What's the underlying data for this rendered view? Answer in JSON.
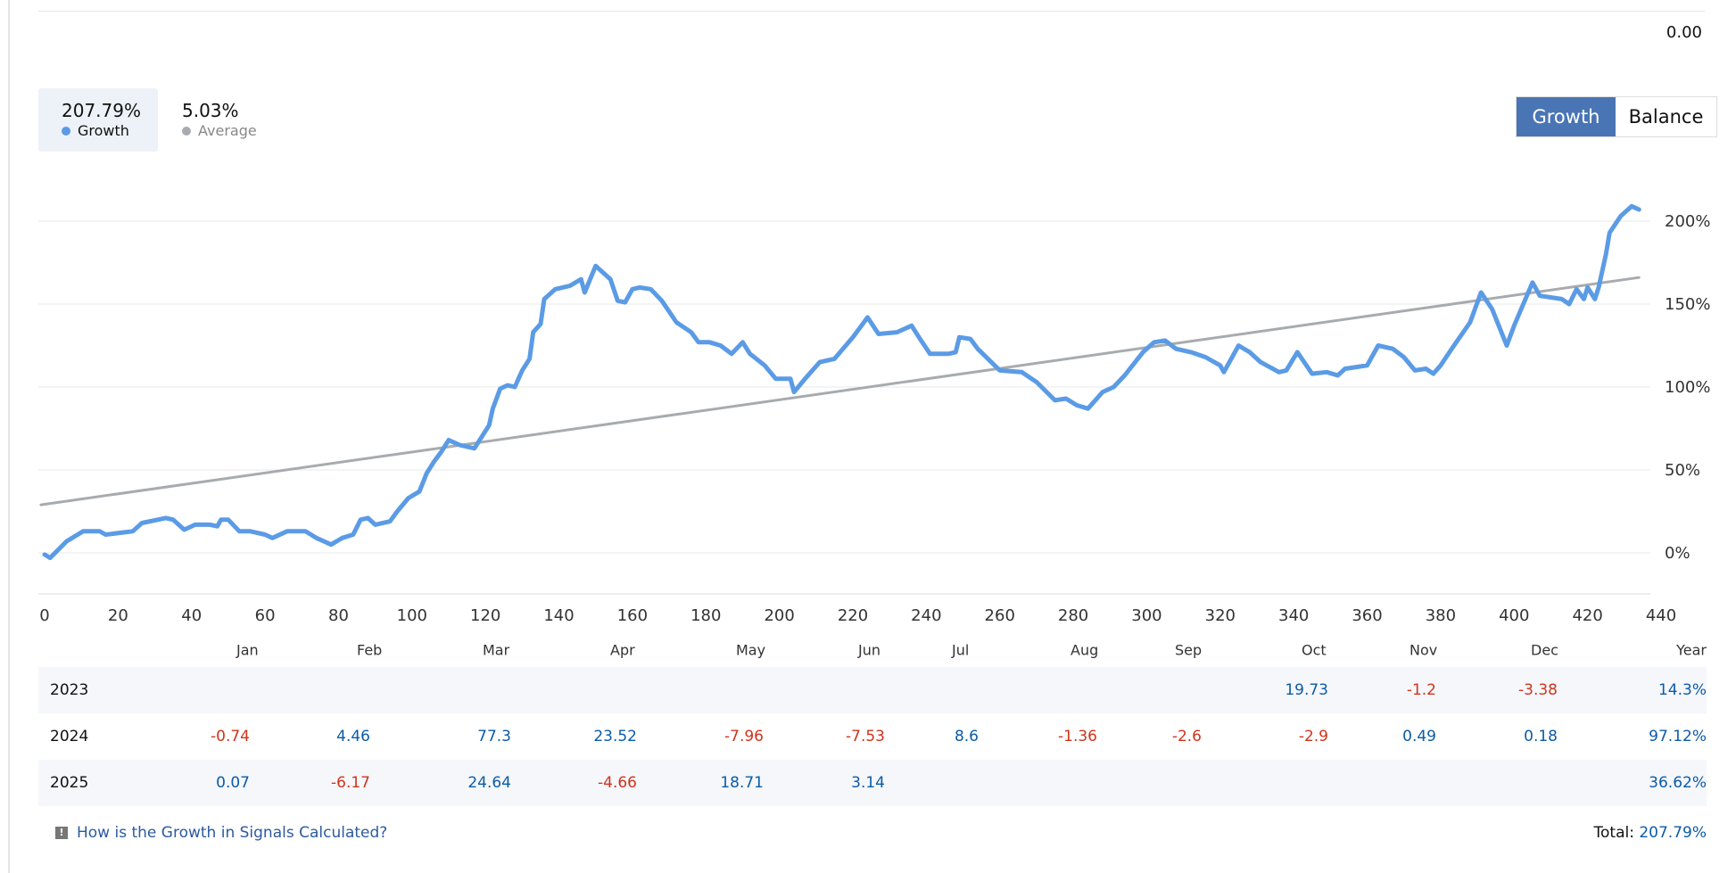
{
  "header": {
    "top_value": "0.00"
  },
  "stats": [
    {
      "value": "207.79%",
      "label": "Growth",
      "color": "#5b9be6"
    },
    {
      "value": "5.03%",
      "label": "Average",
      "color": "#a8abae"
    }
  ],
  "toggle": {
    "growth_label": "Growth",
    "balance_label": "Balance",
    "active": "Growth"
  },
  "chart_data": {
    "type": "line",
    "xlabel": "",
    "ylabel": "",
    "xlim": [
      0,
      440
    ],
    "ylim": [
      -25,
      220
    ],
    "x_ticks": [
      0,
      20,
      40,
      60,
      80,
      100,
      120,
      140,
      160,
      180,
      200,
      220,
      240,
      260,
      280,
      300,
      320,
      340,
      360,
      380,
      400,
      420,
      440
    ],
    "y_ticks": [
      0,
      50,
      100,
      150,
      200
    ],
    "y_tick_labels": [
      "0%",
      "50%",
      "100%",
      "150%",
      "200%"
    ],
    "grid": true,
    "series": [
      {
        "name": "Growth",
        "color": "#5b9be6",
        "points": [
          [
            0,
            -1
          ],
          [
            1.5,
            -3
          ],
          [
            6,
            7
          ],
          [
            10.5,
            13
          ],
          [
            15,
            13
          ],
          [
            16.6,
            11
          ],
          [
            24,
            13
          ],
          [
            26.5,
            18
          ],
          [
            33,
            21
          ],
          [
            35,
            20
          ],
          [
            38,
            14
          ],
          [
            41,
            17
          ],
          [
            45,
            17
          ],
          [
            47,
            16
          ],
          [
            48,
            20
          ],
          [
            50,
            20
          ],
          [
            53,
            13
          ],
          [
            56,
            13
          ],
          [
            60,
            11
          ],
          [
            62,
            9
          ],
          [
            66,
            13
          ],
          [
            71,
            13
          ],
          [
            74,
            9
          ],
          [
            78,
            5
          ],
          [
            81,
            9
          ],
          [
            84,
            11
          ],
          [
            86,
            20
          ],
          [
            88,
            21
          ],
          [
            90,
            17
          ],
          [
            94,
            19
          ],
          [
            96,
            25
          ],
          [
            99,
            33
          ],
          [
            102,
            37
          ],
          [
            104,
            48
          ],
          [
            106,
            55
          ],
          [
            108,
            61
          ],
          [
            110,
            68
          ],
          [
            113,
            65
          ],
          [
            117,
            63
          ],
          [
            121,
            77
          ],
          [
            122,
            87
          ],
          [
            124,
            99
          ],
          [
            126,
            101
          ],
          [
            128,
            100
          ],
          [
            130,
            110
          ],
          [
            132,
            117
          ],
          [
            133,
            133
          ],
          [
            135,
            138
          ],
          [
            136,
            153
          ],
          [
            139,
            159
          ],
          [
            143,
            161
          ],
          [
            146,
            165
          ],
          [
            147,
            157
          ],
          [
            150,
            173
          ],
          [
            154,
            165
          ],
          [
            156,
            152
          ],
          [
            158,
            151
          ],
          [
            160,
            159
          ],
          [
            162,
            160
          ],
          [
            165,
            159
          ],
          [
            168,
            152
          ],
          [
            172,
            139
          ],
          [
            176,
            133
          ],
          [
            178,
            127
          ],
          [
            181,
            127
          ],
          [
            184,
            125
          ],
          [
            187,
            120
          ],
          [
            190,
            127
          ],
          [
            192,
            120
          ],
          [
            196,
            113
          ],
          [
            199,
            105
          ],
          [
            203,
            105
          ],
          [
            204,
            97
          ],
          [
            207,
            105
          ],
          [
            211,
            115
          ],
          [
            215,
            117
          ],
          [
            220,
            130
          ],
          [
            223,
            139
          ],
          [
            224,
            142
          ],
          [
            227,
            132
          ],
          [
            232,
            133
          ],
          [
            236,
            137
          ],
          [
            238,
            130
          ],
          [
            241,
            120
          ],
          [
            246,
            120
          ],
          [
            248,
            121
          ],
          [
            249,
            130
          ],
          [
            252,
            129
          ],
          [
            254,
            123
          ],
          [
            260,
            110
          ],
          [
            266,
            109
          ],
          [
            270,
            103
          ],
          [
            275,
            92
          ],
          [
            278,
            93
          ],
          [
            281,
            89
          ],
          [
            284,
            87
          ],
          [
            288,
            97
          ],
          [
            291,
            100
          ],
          [
            294,
            107
          ],
          [
            299,
            121
          ],
          [
            302,
            127
          ],
          [
            305,
            128
          ],
          [
            308,
            123
          ],
          [
            312,
            121
          ],
          [
            316,
            118
          ],
          [
            320,
            113
          ],
          [
            321,
            109
          ],
          [
            325,
            125
          ],
          [
            328,
            121
          ],
          [
            331,
            115
          ],
          [
            336,
            109
          ],
          [
            338,
            110
          ],
          [
            341,
            121
          ],
          [
            345,
            108
          ],
          [
            349,
            109
          ],
          [
            352,
            107
          ],
          [
            354,
            111
          ],
          [
            360,
            113
          ],
          [
            363,
            125
          ],
          [
            367,
            123
          ],
          [
            370,
            118
          ],
          [
            373,
            110
          ],
          [
            376,
            111
          ],
          [
            378,
            108
          ],
          [
            380,
            113
          ],
          [
            383,
            123
          ],
          [
            388,
            139
          ],
          [
            391,
            157
          ],
          [
            394,
            147
          ],
          [
            398,
            125
          ],
          [
            400,
            137
          ],
          [
            405,
            163
          ],
          [
            407,
            155
          ],
          [
            413,
            153
          ],
          [
            415,
            150
          ],
          [
            417,
            159
          ],
          [
            419,
            153
          ],
          [
            420,
            160
          ],
          [
            422,
            153
          ],
          [
            423,
            160
          ],
          [
            425,
            180
          ],
          [
            426,
            193
          ],
          [
            429,
            203
          ],
          [
            432,
            209
          ],
          [
            434,
            207
          ]
        ]
      },
      {
        "name": "Average",
        "color": "#a8abae",
        "points": [
          [
            -1,
            29
          ],
          [
            434,
            166
          ]
        ]
      }
    ]
  },
  "table": {
    "headers": [
      "Jan",
      "Feb",
      "Mar",
      "Apr",
      "May",
      "Jun",
      "Jul",
      "Aug",
      "Sep",
      "Oct",
      "Nov",
      "Dec",
      "Year"
    ],
    "rows": [
      {
        "year": "2023",
        "values": [
          "",
          "",
          "",
          "",
          "",
          "",
          "",
          "",
          "",
          "19.73",
          "-1.2",
          "-3.38",
          "14.3%"
        ]
      },
      {
        "year": "2024",
        "values": [
          "-0.74",
          "4.46",
          "77.3",
          "23.52",
          "-7.96",
          "-7.53",
          "8.6",
          "-1.36",
          "-2.6",
          "-2.9",
          "0.49",
          "0.18",
          "97.12%"
        ]
      },
      {
        "year": "2025",
        "values": [
          "0.07",
          "-6.17",
          "24.64",
          "-4.66",
          "18.71",
          "3.14",
          "",
          "",
          "",
          "",
          "",
          "",
          "36.62%"
        ]
      }
    ]
  },
  "footer": {
    "link": "How is the Growth in Signals Calculated?",
    "total_label": "Total:",
    "total_value": "207.79%"
  },
  "colors": {
    "positive": "#0b5ba8",
    "negative": "#d0341b",
    "accent": "#4a75b5"
  }
}
